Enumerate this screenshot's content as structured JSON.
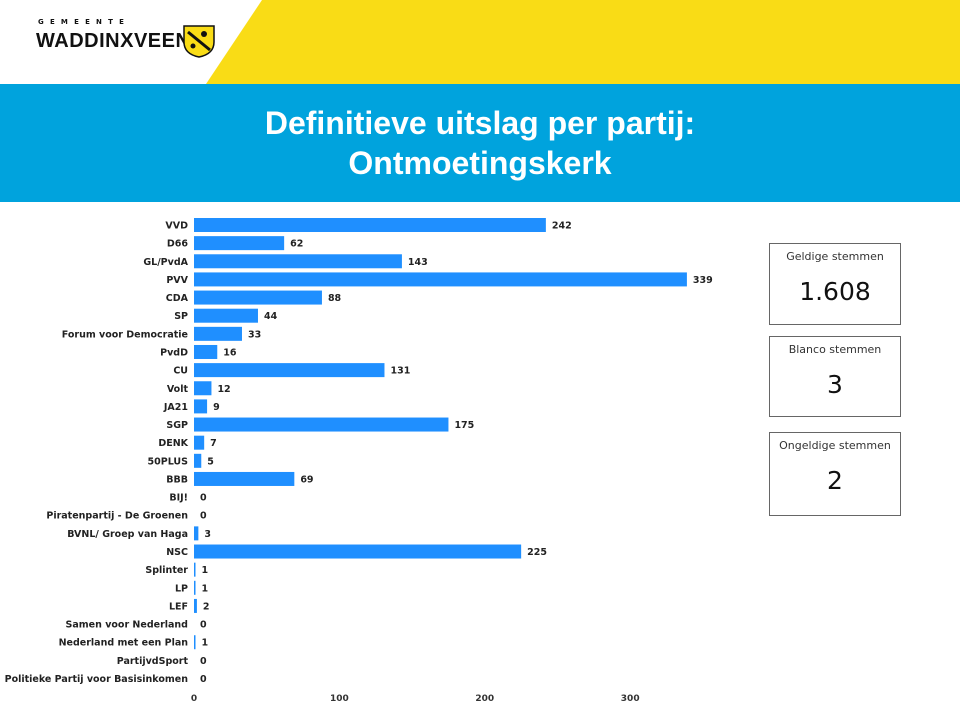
{
  "logo": {
    "municipality_label": "GEMEENTE",
    "name": "WADDINXVEEN",
    "emblem_icon": "coat-of-arms-icon"
  },
  "title": {
    "line1": "Definitieve uitslag per partij:",
    "line2": "Ontmoetingskerk"
  },
  "colors": {
    "brand_yellow": "#f9dc16",
    "title_band": "#00a3dd",
    "bar": "#1f8fff"
  },
  "chart_data": {
    "type": "bar",
    "orientation": "horizontal",
    "categories": [
      "VVD",
      "D66",
      "GL/PvdA",
      "PVV",
      "CDA",
      "SP",
      "Forum voor Democratie",
      "PvdD",
      "CU",
      "Volt",
      "JA21",
      "SGP",
      "DENK",
      "50PLUS",
      "BBB",
      "BIJ!",
      "Piratenpartij - De Groenen",
      "BVNL/ Groep van Haga",
      "NSC",
      "Splinter",
      "LP",
      "LEF",
      "Samen voor Nederland",
      "Nederland met een Plan",
      "PartijvdSport",
      "Politieke Partij voor Basisinkomen"
    ],
    "values": [
      242,
      62,
      143,
      339,
      88,
      44,
      33,
      16,
      131,
      12,
      9,
      175,
      7,
      5,
      69,
      0,
      0,
      3,
      225,
      1,
      1,
      2,
      0,
      1,
      0,
      0
    ],
    "xlim": [
      0,
      500
    ],
    "xticks": [
      "0",
      "100",
      "200",
      "300",
      "400",
      "500"
    ],
    "data_labels": true,
    "grid": false
  },
  "kpis": [
    {
      "label": "Geldige stemmen",
      "value": "1.608"
    },
    {
      "label": "Blanco stemmen",
      "value": "3"
    },
    {
      "label": "Ongeldige stemmen",
      "value": "2"
    }
  ]
}
